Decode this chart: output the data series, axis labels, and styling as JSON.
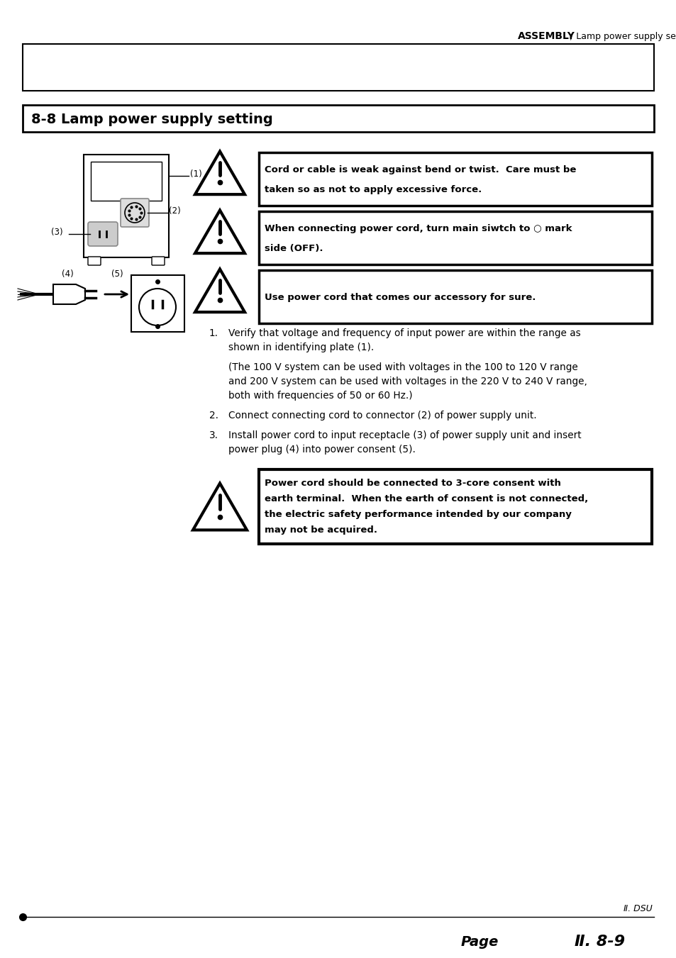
{
  "bg_color": "#ffffff",
  "header_text_bold": "ASSEMBLY",
  "header_text_normal": " / Lamp power supply setting",
  "section_title": "8-8 Lamp power supply setting",
  "warning1_line1": "Cord or cable is weak against bend or twist.  Care must be",
  "warning1_line2": "taken so as not to apply excessive force.",
  "warning2_line1": "When connecting power cord, turn main siwtch to ○ mark",
  "warning2_line2": "side (OFF).",
  "warning3_line1": "Use power cord that comes our accessory for sure.",
  "warning4_line1": "Power cord should be connected to 3-core consent with",
  "warning4_line2": "earth terminal.  When the earth of consent is not connected,",
  "warning4_line3": "the electric safety performance intended by our company",
  "warning4_line4": "may not be acquired.",
  "step1_a": "Verify that voltage and frequency of input power are within the range as",
  "step1_b": "shown in identifying plate (1).",
  "step1_c": "(The 100 V system can be used with voltages in the 100 to 120 V range",
  "step1_d": "and 200 V system can be used with voltages in the 220 V to 240 V range,",
  "step1_e": "both with frequencies of 50 or 60 Hz.)",
  "step2": "Connect connecting cord to connector (2) of power supply unit.",
  "step3_a": "Install power cord to input receptacle (3) of power supply unit and insert",
  "step3_b": "power plug (4) into power consent (5).",
  "footer_italic": "Ⅱ. DSU",
  "footer_page": "Page",
  "footer_page_num": "Ⅱ. 8-9"
}
